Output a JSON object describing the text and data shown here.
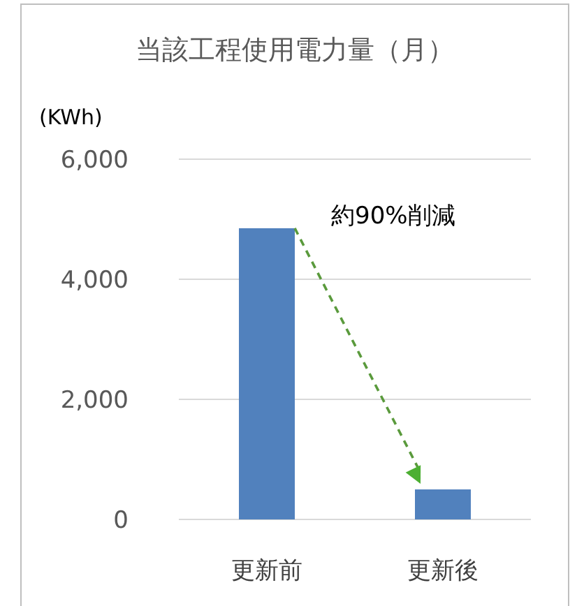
{
  "chart_data": {
    "type": "bar",
    "title": "当該工程使用電力量（月）",
    "ylabel": "(KWh)",
    "categories": [
      "更新前",
      "更新後"
    ],
    "series": [
      {
        "color": "#5181bd",
        "values": [
          4850,
          500
        ]
      }
    ],
    "ylim": [
      0,
      6000
    ],
    "yticks": [
      {
        "value": 0,
        "label": "0"
      },
      {
        "value": 2000,
        "label": "2,000"
      },
      {
        "value": 4000,
        "label": "4,000"
      },
      {
        "value": 6000,
        "label": "6,000"
      }
    ],
    "grid": "y",
    "annotations": [
      "約90%削減"
    ]
  }
}
